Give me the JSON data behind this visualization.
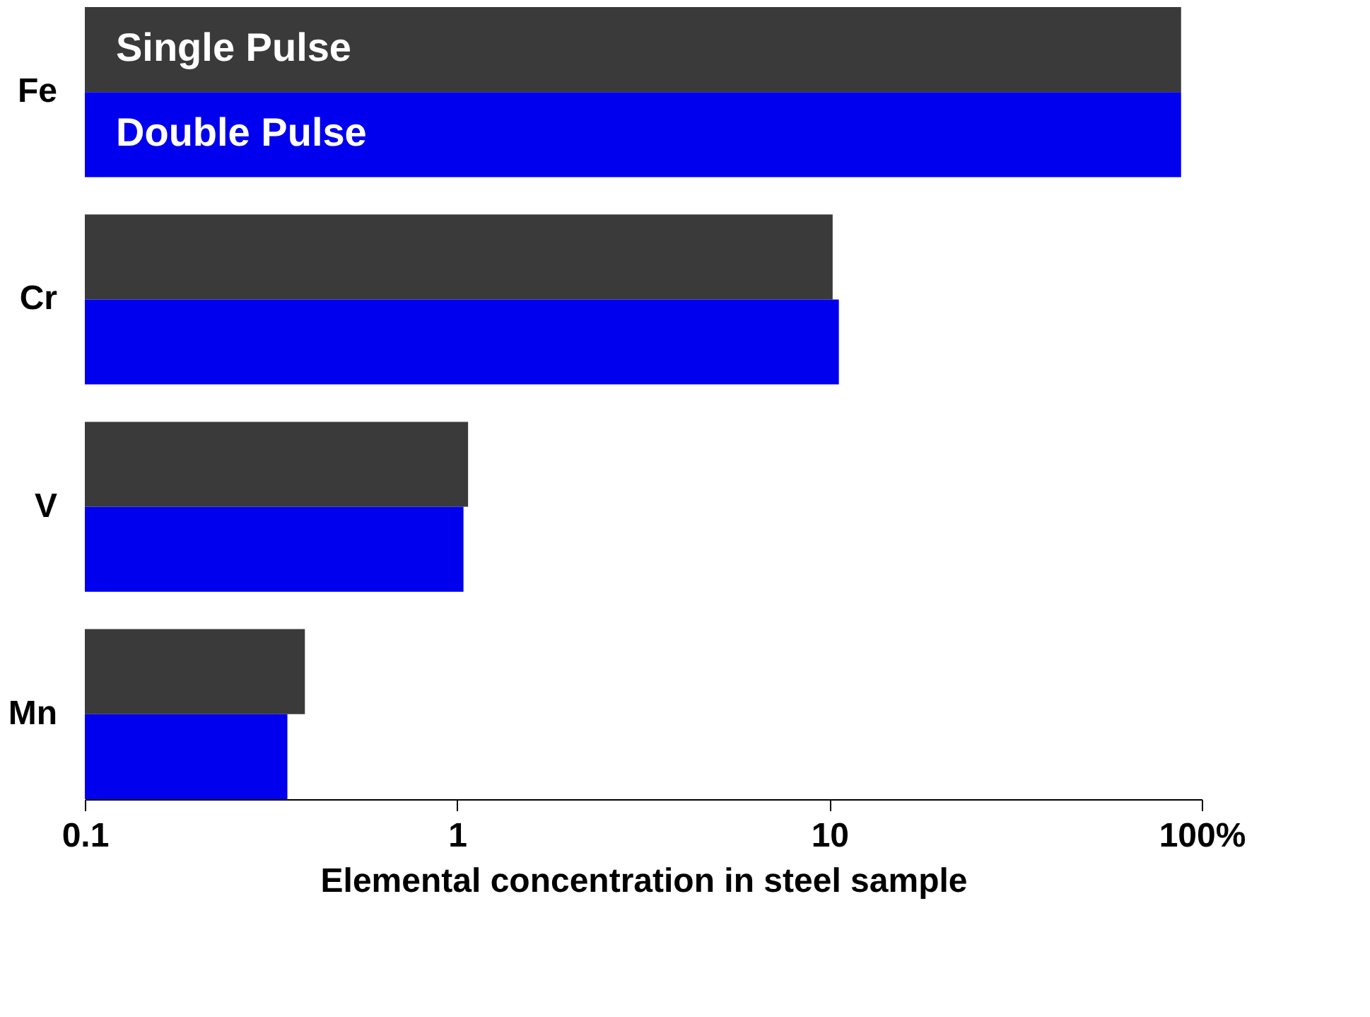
{
  "chart_data": {
    "type": "bar",
    "orientation": "horizontal",
    "xlabel": "Elemental concentration in steel sample",
    "categories": [
      "Fe",
      "Cr",
      "V",
      "Mn"
    ],
    "series": [
      {
        "name": "Single Pulse",
        "color": "#3a3a3a",
        "values": [
          88,
          10.2,
          1.07,
          0.39
        ]
      },
      {
        "name": "Double Pulse",
        "color": "#0000ee",
        "values": [
          88,
          10.6,
          1.04,
          0.35
        ]
      }
    ],
    "log": "x",
    "xlim": [
      0.1,
      100
    ],
    "xticks": [
      0.1,
      1,
      10,
      {
        "value": 100,
        "label": "100%"
      }
    ],
    "grid": false,
    "legend": false
  }
}
